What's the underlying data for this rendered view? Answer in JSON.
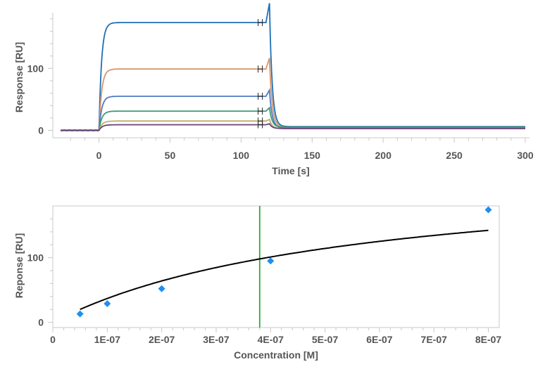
{
  "chart_data": [
    {
      "type": "line",
      "title": "",
      "xlabel": "Time [s]",
      "ylabel": "Response [RU]",
      "xlim": [
        -30,
        300
      ],
      "ylim": [
        -12,
        190
      ],
      "x_ticks": [
        "0",
        "50",
        "100",
        "150",
        "200",
        "250",
        "300"
      ],
      "x_tick_values": [
        0,
        50,
        100,
        150,
        200,
        250,
        300
      ],
      "y_ticks": [
        "0",
        "100"
      ],
      "y_tick_values": [
        0,
        100
      ],
      "injection_start": 0,
      "injection_end": 120,
      "grid": false,
      "series": [
        {
          "color": "#1f6fb4",
          "plateau": 174,
          "tail": 6
        },
        {
          "color": "#d9956a",
          "plateau": 99,
          "tail": 5
        },
        {
          "color": "#4f79c4",
          "plateau": 55,
          "tail": 4
        },
        {
          "color": "#3f9a78",
          "plateau": 31,
          "tail": 5
        },
        {
          "color": "#b9b46a",
          "plateau": 15,
          "tail": 3
        },
        {
          "color": "#6a3f7a",
          "plateau": 9,
          "tail": 3
        }
      ]
    },
    {
      "type": "scatter",
      "title": "",
      "xlabel": "Concentration [M]",
      "ylabel": "Reponse [RU]",
      "xlim": [
        0,
        8.2e-07
      ],
      "ylim": [
        -8,
        180
      ],
      "x_ticks": [
        "0",
        "1E-07",
        "2E-07",
        "3E-07",
        "4E-07",
        "5E-07",
        "6E-07",
        "7E-07",
        "8E-07"
      ],
      "x_tick_values": [
        0,
        1e-07,
        2e-07,
        3e-07,
        4e-07,
        5e-07,
        6e-07,
        7e-07,
        8e-07
      ],
      "y_ticks": [
        "0",
        "100"
      ],
      "y_tick_values": [
        0,
        100
      ],
      "points": [
        {
          "x": 5e-08,
          "y": 13
        },
        {
          "x": 1e-07,
          "y": 29
        },
        {
          "x": 2e-07,
          "y": 52
        },
        {
          "x": 4e-07,
          "y": 95
        },
        {
          "x": 8e-07,
          "y": 174
        }
      ],
      "point_color": "#1e8ff0",
      "fit": {
        "rmax": 240,
        "kd": 5.5e-07,
        "x_start": 5e-08,
        "x_end": 8e-07,
        "color": "#000000"
      },
      "kd_line": {
        "x": 3.8e-07,
        "color": "#2eaa3e"
      }
    }
  ]
}
